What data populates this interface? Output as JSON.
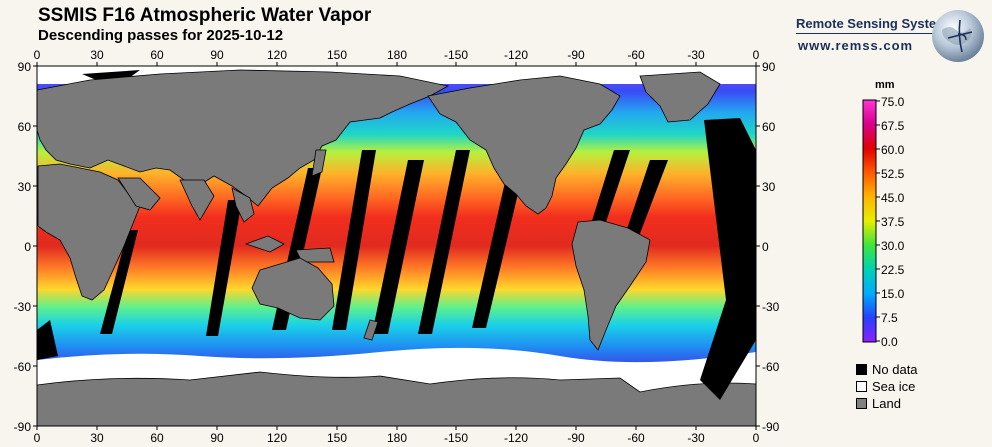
{
  "header": {
    "title": "SSMIS F16 Atmospheric Water Vapor",
    "subtitle": "Descending passes for 2025-10-12"
  },
  "brand": {
    "name": "Remote Sensing Systems",
    "url": "www.remss.com"
  },
  "map": {
    "lon_ticks_top": [
      "0",
      "30",
      "60",
      "90",
      "120",
      "150",
      "180",
      "-150",
      "-120",
      "-90",
      "-60",
      "-30",
      "0"
    ],
    "lon_ticks_bottom": [
      "0",
      "30",
      "60",
      "90",
      "120",
      "150",
      "180",
      "-150",
      "-120",
      "-90",
      "-60",
      "-30",
      "0"
    ],
    "lat_ticks_left": [
      "90",
      "60",
      "30",
      "0",
      "-30",
      "-60",
      "-90"
    ],
    "lat_ticks_right": [
      "90",
      "60",
      "30",
      "0",
      "-30",
      "-60",
      "-90"
    ],
    "colors": {
      "land": "#7a7a7a",
      "no_data": "#000000",
      "sea_ice": "#ffffff"
    }
  },
  "colorbar": {
    "unit": "mm",
    "ticks": [
      "75.0",
      "67.5",
      "60.0",
      "52.5",
      "45.0",
      "37.5",
      "30.0",
      "22.5",
      "15.0",
      "7.5",
      "0.0"
    ]
  },
  "legend": {
    "items": [
      {
        "label": "No data",
        "color": "#000000"
      },
      {
        "label": "Sea ice",
        "color": "#ffffff"
      },
      {
        "label": "Land",
        "color": "#808080"
      }
    ]
  }
}
